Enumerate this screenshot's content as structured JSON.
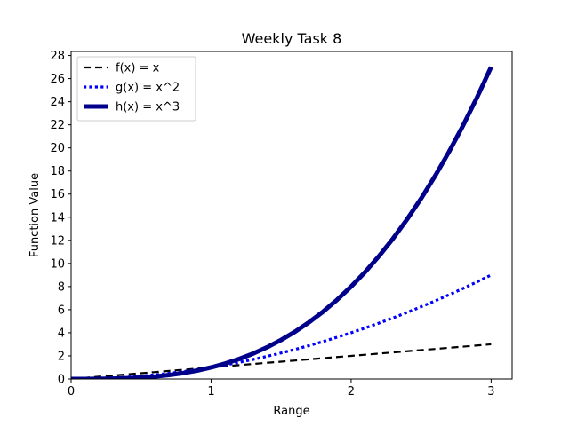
{
  "chart_data": {
    "type": "line",
    "title": "Weekly Task 8",
    "xlabel": "Range",
    "ylabel": "Function Value",
    "xlim": [
      0,
      3.15
    ],
    "ylim": [
      0,
      28.35
    ],
    "xticks": [
      0,
      1,
      2,
      3
    ],
    "xtick_labels": [
      "0",
      "1",
      "2",
      "3"
    ],
    "yticks": [
      0,
      2,
      4,
      6,
      8,
      10,
      12,
      14,
      16,
      18,
      20,
      22,
      24,
      26,
      28
    ],
    "ytick_labels": [
      "0",
      "2",
      "4",
      "6",
      "8",
      "10",
      "12",
      "14",
      "16",
      "18",
      "20",
      "22",
      "24",
      "26",
      "28"
    ],
    "grid": false,
    "legend_position": "top-left",
    "x": [
      0,
      0.1,
      0.2,
      0.3,
      0.4,
      0.5,
      0.6,
      0.7,
      0.8,
      0.9,
      1.0,
      1.1,
      1.2,
      1.3,
      1.4,
      1.5,
      1.6,
      1.7,
      1.8,
      1.9,
      2.0,
      2.1,
      2.2,
      2.3,
      2.4,
      2.5,
      2.6,
      2.7,
      2.8,
      2.9,
      3.0
    ],
    "series": [
      {
        "name": "f(x) = x",
        "color": "#000000",
        "style": "dashed",
        "values": [
          0,
          0.1,
          0.2,
          0.3,
          0.4,
          0.5,
          0.6,
          0.7,
          0.8,
          0.9,
          1.0,
          1.1,
          1.2,
          1.3,
          1.4,
          1.5,
          1.6,
          1.7,
          1.8,
          1.9,
          2.0,
          2.1,
          2.2,
          2.3,
          2.4,
          2.5,
          2.6,
          2.7,
          2.8,
          2.9,
          3.0
        ]
      },
      {
        "name": "g(x) = x^2",
        "color": "#0000ff",
        "style": "dotted",
        "values": [
          0,
          0.01,
          0.04,
          0.09,
          0.16,
          0.25,
          0.36,
          0.49,
          0.64,
          0.81,
          1.0,
          1.21,
          1.44,
          1.69,
          1.96,
          2.25,
          2.56,
          2.89,
          3.24,
          3.61,
          4.0,
          4.41,
          4.84,
          5.29,
          5.76,
          6.25,
          6.76,
          7.29,
          7.84,
          8.41,
          9.0
        ]
      },
      {
        "name": "h(x) = x^3",
        "color": "#00008b",
        "style": "solid-thick",
        "values": [
          0,
          0.001,
          0.008,
          0.027,
          0.064,
          0.125,
          0.216,
          0.343,
          0.512,
          0.729,
          1.0,
          1.331,
          1.728,
          2.197,
          2.744,
          3.375,
          4.096,
          4.913,
          5.832,
          6.859,
          8.0,
          9.261,
          10.648,
          12.167,
          13.824,
          15.625,
          17.576,
          19.683,
          21.952,
          24.389,
          27.0
        ]
      }
    ]
  }
}
